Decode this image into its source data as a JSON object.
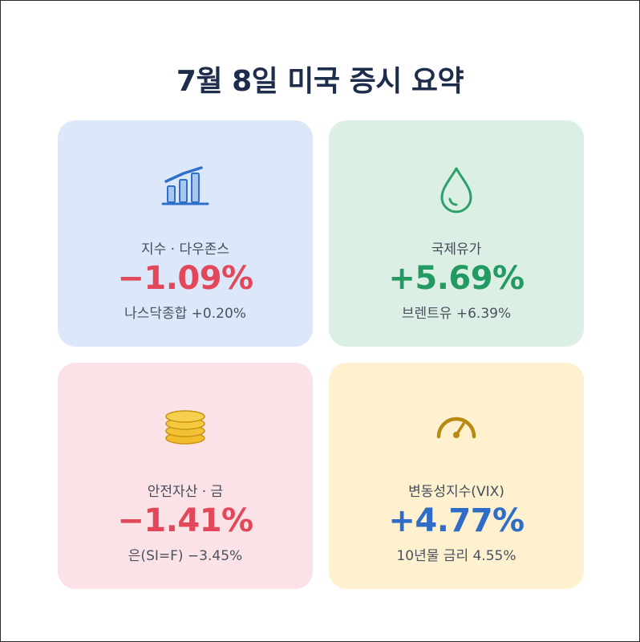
{
  "title": "7월 8일 미국 증시 요약",
  "cards": [
    {
      "icon": "bar-chart-icon",
      "label": "지수 · 다우존스",
      "value": "−1.09%",
      "sub": "나스닥종합 +0.20%",
      "value_color": "#e2475a",
      "icon_color": "#2f6fc9"
    },
    {
      "icon": "oil-drop-icon",
      "label": "국제유가",
      "value": "+5.69%",
      "sub": "브렌트유 +6.39%",
      "value_color": "#229a62",
      "icon_color": "#2ea06a"
    },
    {
      "icon": "coins-icon",
      "label": "안전자산 · 금",
      "value": "−1.41%",
      "sub": "은(SI=F) −3.45%",
      "value_color": "#e2475a",
      "icon_color": "#e2ad1c"
    },
    {
      "icon": "gauge-icon",
      "label": "변동성지수(VIX)",
      "value": "+4.77%",
      "sub": "10년물 금리 4.55%",
      "value_color": "#2e6cc7",
      "icon_color": "#b88a12"
    }
  ]
}
